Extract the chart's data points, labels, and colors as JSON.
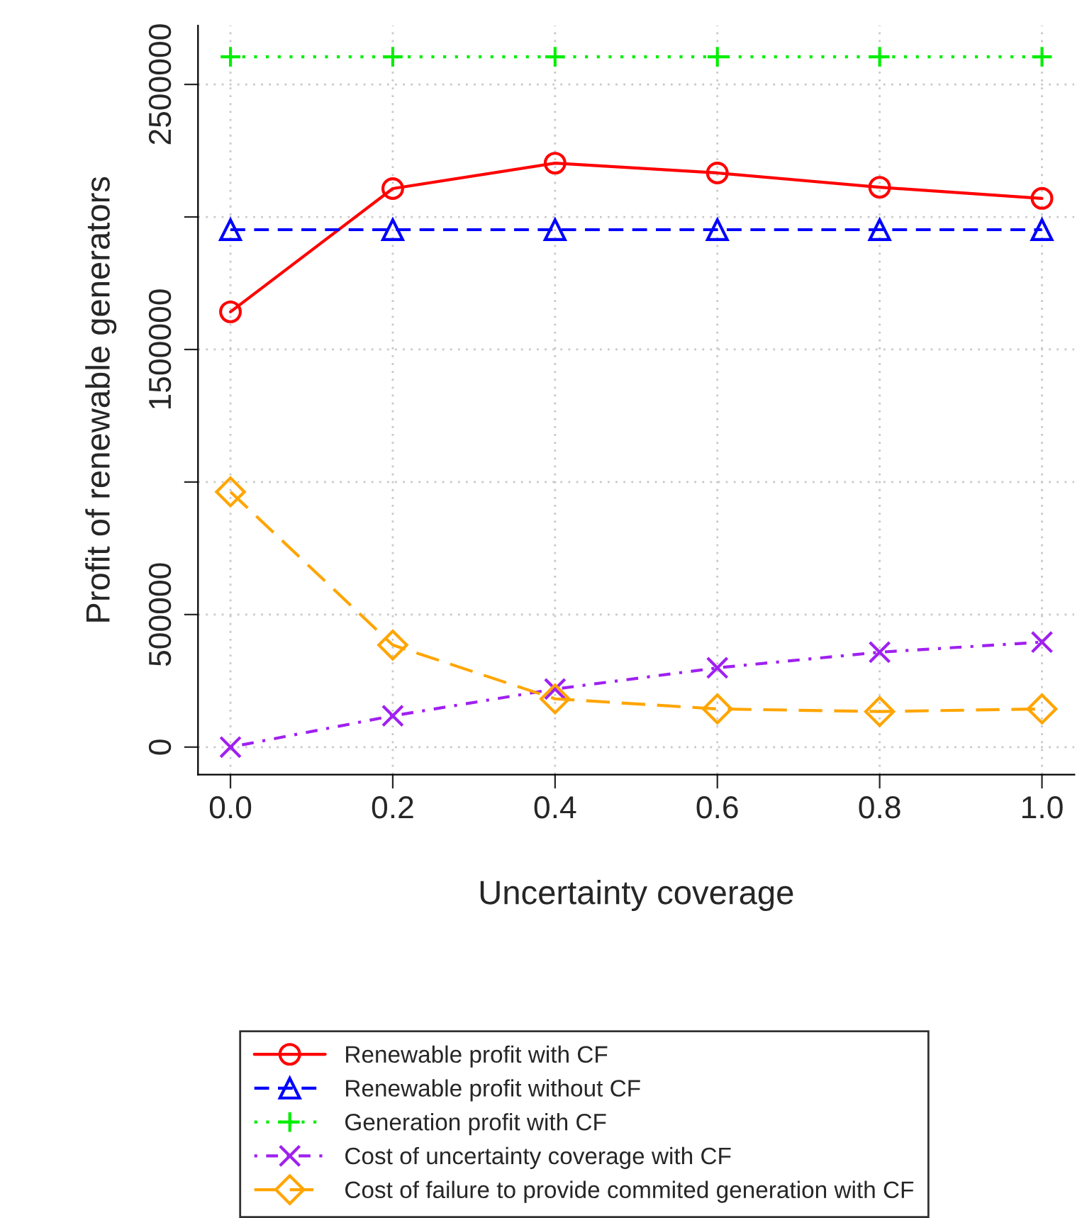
{
  "chart_data": {
    "type": "line",
    "xlabel": "Uncertainty coverage",
    "ylabel": "Profit of renewable generators",
    "x": [
      0.0,
      0.2,
      0.4,
      0.6,
      0.8,
      1.0
    ],
    "xlim": [
      -0.04,
      1.04
    ],
    "xticks": [
      {
        "value": 0,
        "label": "0.0"
      },
      {
        "value": 0.2,
        "label": "0.2"
      },
      {
        "value": 0.4,
        "label": "0.4"
      },
      {
        "value": 0.6,
        "label": "0.6"
      },
      {
        "value": 0.8,
        "label": "0.8"
      },
      {
        "value": 1,
        "label": "1.0"
      }
    ],
    "ylim": [
      -104000,
      2722000
    ],
    "yticks": [
      0,
      500000,
      {
        "value": 1000000,
        "label": null
      },
      1500000,
      {
        "value": 2000000,
        "label": null
      },
      2500000
    ],
    "grid": true,
    "legend": "bottom",
    "series": [
      {
        "name": "Renewable profit with CF",
        "color": "#ff0000",
        "marker": "circle",
        "line_style": "solid",
        "values": [
          1642000,
          2107000,
          2203000,
          2166000,
          2112000,
          2070000
        ]
      },
      {
        "name": "Renewable profit without CF",
        "color": "#0000ff",
        "marker": "triangle",
        "line_style": "dashed",
        "values": [
          1952000,
          1952000,
          1952000,
          1952000,
          1952000,
          1952000
        ]
      },
      {
        "name": "Generation profit with CF",
        "color": "#00ee00",
        "marker": "plus",
        "line_style": "dotted",
        "values": [
          2604000,
          2604000,
          2604000,
          2604000,
          2604000,
          2604000
        ]
      },
      {
        "name": "Cost of uncertainty coverage with CF",
        "color": "#a020f0",
        "marker": "cross",
        "line_style": "dashdot",
        "values": [
          0,
          118000,
          219000,
          299000,
          358000,
          396000
        ]
      },
      {
        "name": "Cost of failure to provide commited generation with CF",
        "color": "#ffa500",
        "marker": "diamond",
        "line_style": "longdash",
        "values": [
          963000,
          385000,
          182000,
          144000,
          134000,
          144000
        ]
      }
    ]
  }
}
